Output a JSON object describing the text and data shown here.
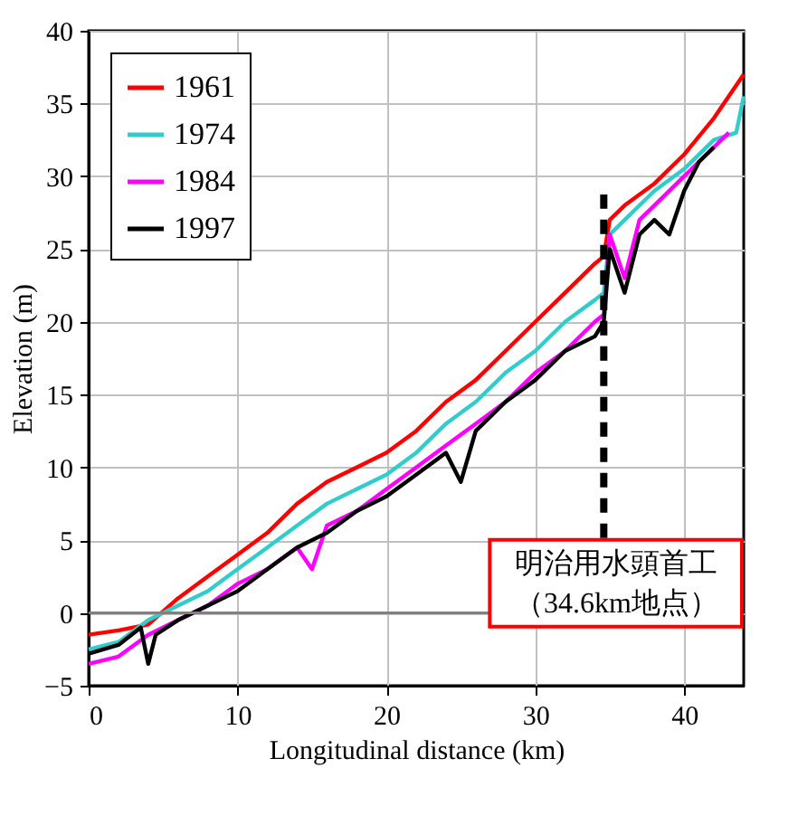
{
  "chart_data": {
    "type": "line",
    "xlabel": "Longitudinal distance (km)",
    "ylabel": "Elevation (m)",
    "xlim": [
      0,
      44
    ],
    "xticks": [
      0,
      10,
      20,
      30,
      40
    ],
    "ylim": [
      -5,
      40
    ],
    "yticks": [
      -5,
      0,
      5,
      10,
      15,
      20,
      25,
      30,
      35,
      40
    ],
    "grid": true,
    "legend": "top left",
    "line_style": "solid",
    "marker": "none",
    "ref_lines": [
      {
        "axis": "y",
        "value": 0,
        "color": "#808080",
        "line_style": "solid"
      },
      {
        "axis": "x",
        "value": 34.6,
        "color": "#000000",
        "line_style": "dashed"
      }
    ],
    "annotations": [
      {
        "text": "明治用水頭首工",
        "x": 34.6,
        "y": 3.4
      },
      "（34.6km地点）"
    ],
    "series": [
      {
        "name": "1961",
        "color": "#ff0000",
        "x": [
          0,
          2,
          4,
          6,
          8,
          10,
          12,
          14,
          16,
          18,
          20,
          22,
          24,
          26,
          28,
          30,
          32,
          34,
          34.6,
          35,
          36,
          38,
          40,
          42,
          44
        ],
        "values": [
          -1.5,
          -1.2,
          -0.8,
          1,
          2.5,
          4,
          5.5,
          7.5,
          9,
          10,
          11,
          12.5,
          14.5,
          16,
          18,
          20,
          22,
          24,
          24.5,
          27,
          28,
          29.5,
          31.5,
          34,
          37
        ]
      },
      {
        "name": "1974",
        "color": "#33cccc",
        "x": [
          0,
          2,
          4,
          6,
          8,
          10,
          12,
          14,
          16,
          18,
          20,
          22,
          24,
          26,
          28,
          30,
          32,
          34,
          34.6,
          35,
          36,
          38,
          40,
          42,
          43.5,
          44
        ],
        "values": [
          -2.5,
          -2,
          -0.5,
          0.5,
          1.5,
          3,
          4.5,
          6,
          7.5,
          8.5,
          9.5,
          11,
          13,
          14.5,
          16.5,
          18,
          20,
          21.5,
          22,
          26,
          27,
          29,
          30.5,
          32.5,
          33,
          35.5
        ]
      },
      {
        "name": "1984",
        "color": "#ff00ff",
        "x": [
          0,
          2,
          4,
          6,
          8,
          10,
          12,
          14,
          15,
          16,
          18,
          20,
          22,
          24,
          26,
          28,
          30,
          32,
          34,
          34.6,
          35,
          36,
          37,
          38,
          40,
          42,
          43
        ],
        "values": [
          -3.5,
          -3,
          -1.5,
          -0.5,
          0.5,
          2,
          3,
          4.5,
          3,
          6,
          7,
          8.5,
          10,
          11.5,
          13,
          14.5,
          16.5,
          18,
          20,
          20.5,
          26,
          23,
          27,
          28,
          30,
          32,
          33
        ]
      },
      {
        "name": "1997",
        "color": "#000000",
        "x": [
          0,
          2,
          3.5,
          4,
          4.5,
          6,
          8,
          10,
          12,
          14,
          16,
          18,
          20,
          22,
          24,
          25,
          26,
          28,
          30,
          32,
          34,
          34.6,
          35,
          36,
          37,
          38,
          39,
          40,
          41,
          42
        ],
        "values": [
          -2.8,
          -2.2,
          -1,
          -3.5,
          -1.5,
          -0.5,
          0.5,
          1.5,
          3,
          4.5,
          5.5,
          7,
          8,
          9.5,
          11,
          9,
          12.5,
          14.5,
          16,
          18,
          19,
          20,
          25,
          22,
          26,
          27,
          26,
          29,
          31,
          32
        ]
      }
    ]
  }
}
